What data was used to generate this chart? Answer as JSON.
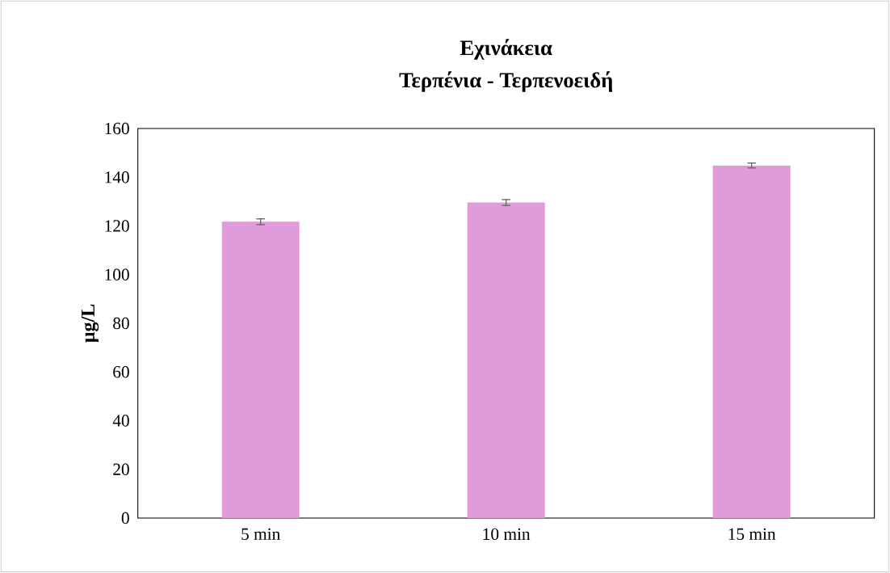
{
  "chart_data": {
    "type": "bar",
    "title": "Εχινάκεια",
    "subtitle": "Τερπένια - Τερπενοειδή",
    "ylabel": "μg/L",
    "categories": [
      "5 min",
      "10 min",
      "15 min"
    ],
    "values": [
      121.7,
      129.6,
      144.8
    ],
    "errors": [
      1.2,
      1.2,
      1.0
    ],
    "color": "#e09bdb",
    "ylim": [
      0,
      160
    ],
    "yticks": [
      0,
      20,
      40,
      60,
      80,
      100,
      120,
      140,
      160
    ],
    "grid": false
  }
}
